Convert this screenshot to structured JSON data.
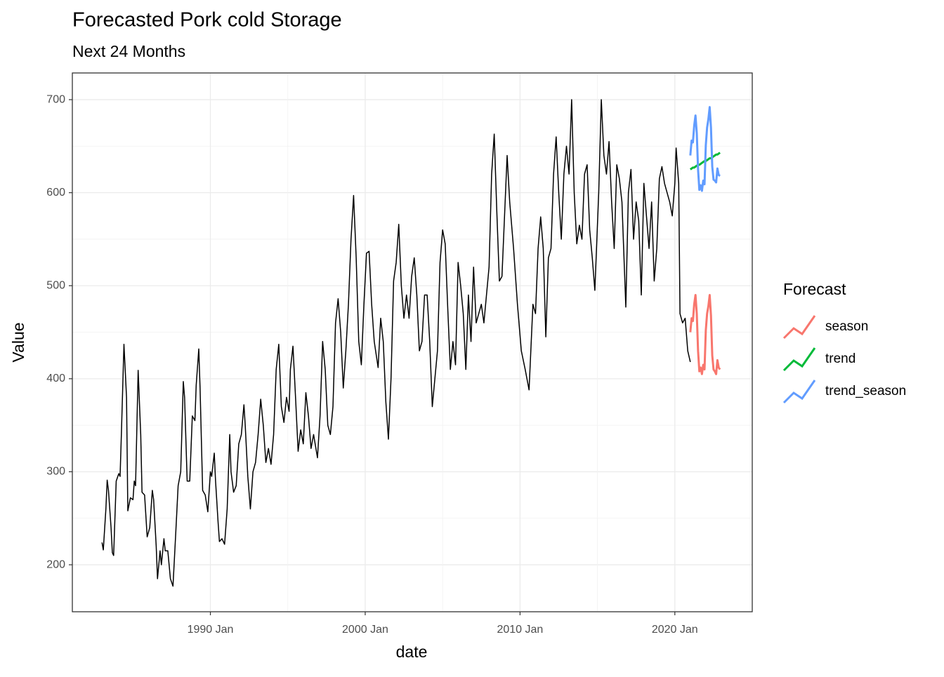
{
  "chart_data": {
    "type": "line",
    "title": "Forecasted Pork cold Storage",
    "subtitle": "Next 24 Months",
    "x_label": "date",
    "y_label": "Value",
    "legend_title": "Forecast",
    "legend": "right",
    "grid": true,
    "xlim": [
      "1981-02",
      "2025-01"
    ],
    "xticks": [
      {
        "value": "1990-01",
        "label": "1990 Jan"
      },
      {
        "value": "2000-01",
        "label": "2000 Jan"
      },
      {
        "value": "2010-01",
        "label": "2010 Jan"
      },
      {
        "value": "2020-01",
        "label": "2020 Jan"
      }
    ],
    "ylim": [
      149.5,
      728.7
    ],
    "yticks": [
      200,
      300,
      400,
      500,
      600,
      700
    ],
    "series": [
      {
        "color": "#000000",
        "x": [
          "1983-01",
          "1983-02",
          "1983-04",
          "1983-05",
          "1983-06",
          "1983-08",
          "1983-09",
          "1983-10",
          "1983-12",
          "1984-02",
          "1984-03",
          "1984-04",
          "1984-06",
          "1984-08",
          "1984-09",
          "1984-11",
          "1985-01",
          "1985-02",
          "1985-03",
          "1985-05",
          "1985-07",
          "1985-08",
          "1985-10",
          "1985-12",
          "1986-02",
          "1986-04",
          "1986-05",
          "1986-07",
          "1986-08",
          "1986-10",
          "1986-11",
          "1987-01",
          "1987-02",
          "1987-04",
          "1987-06",
          "1987-08",
          "1987-10",
          "1987-12",
          "1988-02",
          "1988-04",
          "1988-05",
          "1988-07",
          "1988-09",
          "1988-11",
          "1989-01",
          "1989-02",
          "1989-04",
          "1989-05",
          "1989-07",
          "1989-09",
          "1989-11",
          "1990-01",
          "1990-02",
          "1990-04",
          "1990-05",
          "1990-07",
          "1990-08",
          "1990-10",
          "1990-12",
          "1991-02",
          "1991-04",
          "1991-05",
          "1991-07",
          "1991-09",
          "1991-11",
          "1992-01",
          "1992-03",
          "1992-04",
          "1992-06",
          "1992-08",
          "1992-10",
          "1992-12",
          "1993-02",
          "1993-04",
          "1993-06",
          "1993-08",
          "1993-10",
          "1993-12",
          "1994-02",
          "1994-04",
          "1994-06",
          "1994-08",
          "1994-10",
          "1994-12",
          "1995-02",
          "1995-03",
          "1995-05",
          "1995-07",
          "1995-09",
          "1995-11",
          "1996-01",
          "1996-03",
          "1996-05",
          "1996-07",
          "1996-09",
          "1996-12",
          "1997-02",
          "1997-04",
          "1997-06",
          "1997-08",
          "1997-10",
          "1997-12",
          "1998-02",
          "1998-04",
          "1998-06",
          "1998-08",
          "1998-10",
          "1998-12",
          "1999-02",
          "1999-04",
          "1999-06",
          "1999-08",
          "1999-10",
          "1999-12",
          "2000-02",
          "2000-04",
          "2000-06",
          "2000-08",
          "2000-11",
          "2001-01",
          "2001-03",
          "2001-05",
          "2001-07",
          "2001-09",
          "2001-11",
          "2002-01",
          "2002-03",
          "2002-05",
          "2002-07",
          "2002-09",
          "2002-11",
          "2003-01",
          "2003-03",
          "2003-05",
          "2003-07",
          "2003-09",
          "2003-11",
          "2004-01",
          "2004-03",
          "2004-05",
          "2004-07",
          "2004-09",
          "2004-11",
          "2005-01",
          "2005-03",
          "2005-05",
          "2005-07",
          "2005-09",
          "2005-11",
          "2006-01",
          "2006-03",
          "2006-05",
          "2006-07",
          "2006-09",
          "2006-11",
          "2007-01",
          "2007-03",
          "2007-05",
          "2007-07",
          "2007-09",
          "2008-01",
          "2008-03",
          "2008-05",
          "2008-07",
          "2008-09",
          "2008-11",
          "2009-01",
          "2009-03",
          "2009-05",
          "2009-08",
          "2009-11",
          "2010-02",
          "2010-05",
          "2010-08",
          "2010-11",
          "2011-01",
          "2011-03",
          "2011-05",
          "2011-07",
          "2011-09",
          "2011-11",
          "2012-01",
          "2012-03",
          "2012-05",
          "2012-07",
          "2012-09",
          "2012-11",
          "2013-01",
          "2013-03",
          "2013-05",
          "2013-07",
          "2013-09",
          "2013-11",
          "2014-01",
          "2014-03",
          "2014-05",
          "2014-07",
          "2014-09",
          "2014-11",
          "2015-02",
          "2015-04",
          "2015-06",
          "2015-08",
          "2015-10",
          "2015-12",
          "2016-02",
          "2016-04",
          "2016-06",
          "2016-08",
          "2016-11",
          "2017-01",
          "2017-03",
          "2017-05",
          "2017-07",
          "2017-09",
          "2017-11",
          "2018-01",
          "2018-03",
          "2018-05",
          "2018-07",
          "2018-09",
          "2018-11",
          "2019-01",
          "2019-03",
          "2019-05",
          "2019-07",
          "2019-09",
          "2019-11",
          "2020-01",
          "2020-02",
          "2020-04",
          "2020-05",
          "2020-07",
          "2020-09",
          "2020-11",
          "2021-01"
        ],
        "values": [
          224,
          216,
          260,
          291,
          280,
          240,
          213,
          210,
          290,
          298,
          295,
          340,
          437,
          380,
          258,
          272,
          270,
          290,
          285,
          409,
          340,
          278,
          275,
          230,
          240,
          280,
          270,
          220,
          185,
          215,
          200,
          228,
          215,
          215,
          185,
          177,
          230,
          285,
          300,
          397,
          380,
          290,
          290,
          360,
          355,
          393,
          432,
          390,
          280,
          275,
          257,
          300,
          295,
          320,
          290,
          245,
          225,
          228,
          222,
          260,
          340,
          300,
          278,
          285,
          330,
          340,
          372,
          350,
          295,
          260,
          300,
          310,
          340,
          378,
          350,
          310,
          325,
          308,
          340,
          410,
          437,
          370,
          353,
          380,
          365,
          410,
          435,
          380,
          322,
          345,
          330,
          385,
          360,
          325,
          340,
          315,
          360,
          440,
          410,
          350,
          340,
          370,
          460,
          486,
          450,
          390,
          430,
          480,
          550,
          597,
          530,
          440,
          415,
          480,
          535,
          537,
          480,
          440,
          412,
          465,
          440,
          375,
          335,
          400,
          505,
          525,
          566,
          500,
          465,
          490,
          465,
          510,
          530,
          490,
          430,
          440,
          490,
          490,
          440,
          370,
          400,
          430,
          525,
          560,
          545,
          475,
          410,
          440,
          415,
          525,
          500,
          470,
          410,
          490,
          440,
          520,
          460,
          470,
          480,
          460,
          520,
          620,
          663,
          580,
          505,
          510,
          575,
          640,
          590,
          540,
          480,
          430,
          410,
          388,
          480,
          470,
          540,
          574,
          540,
          445,
          530,
          540,
          620,
          660,
          600,
          550,
          620,
          650,
          620,
          700,
          600,
          545,
          565,
          550,
          620,
          630,
          560,
          530,
          495,
          600,
          700,
          640,
          620,
          655,
          590,
          540,
          630,
          615,
          590,
          477,
          600,
          625,
          550,
          590,
          570,
          490,
          610,
          575,
          540,
          590,
          505,
          540,
          615,
          628,
          610,
          600,
          590,
          575,
          610,
          648,
          610,
          470,
          460,
          465,
          430,
          418
        ]
      },
      {
        "name": "season",
        "color": "#F8766D",
        "x": [
          "2021-01",
          "2021-02",
          "2021-03",
          "2021-04",
          "2021-05",
          "2021-06",
          "2021-07",
          "2021-08",
          "2021-09",
          "2021-10",
          "2021-11",
          "2021-12",
          "2022-01",
          "2022-02",
          "2022-03",
          "2022-04",
          "2022-05",
          "2022-06",
          "2022-07",
          "2022-08",
          "2022-09",
          "2022-10",
          "2022-11",
          "2022-12"
        ],
        "values": [
          450,
          465,
          462,
          480,
          490,
          470,
          430,
          408,
          412,
          405,
          415,
          410,
          452,
          470,
          478,
          490,
          468,
          425,
          410,
          408,
          405,
          420,
          412,
          410
        ]
      },
      {
        "name": "trend",
        "color": "#00BA38",
        "x": [
          "2021-01",
          "2021-02",
          "2021-03",
          "2021-04",
          "2021-05",
          "2021-06",
          "2021-07",
          "2021-08",
          "2021-09",
          "2021-10",
          "2021-11",
          "2021-12",
          "2022-01",
          "2022-02",
          "2022-03",
          "2022-04",
          "2022-05",
          "2022-06",
          "2022-07",
          "2022-08",
          "2022-09",
          "2022-10",
          "2022-11",
          "2022-12"
        ],
        "values": [
          625,
          626,
          627,
          627,
          628,
          629,
          630,
          630,
          631,
          632,
          633,
          634,
          634,
          635,
          636,
          637,
          637,
          638,
          639,
          640,
          641,
          641,
          642,
          643
        ]
      },
      {
        "name": "trend_season",
        "color": "#619CFF",
        "x": [
          "2021-01",
          "2021-02",
          "2021-03",
          "2021-04",
          "2021-05",
          "2021-06",
          "2021-07",
          "2021-08",
          "2021-09",
          "2021-10",
          "2021-11",
          "2021-12",
          "2022-01",
          "2022-02",
          "2022-03",
          "2022-04",
          "2022-05",
          "2022-06",
          "2022-07",
          "2022-08",
          "2022-09",
          "2022-10",
          "2022-11",
          "2022-12"
        ],
        "values": [
          640,
          656,
          654,
          672,
          683,
          664,
          625,
          603,
          608,
          602,
          613,
          609,
          651,
          670,
          679,
          692,
          670,
          628,
          614,
          613,
          611,
          626,
          619,
          618
        ]
      }
    ]
  }
}
